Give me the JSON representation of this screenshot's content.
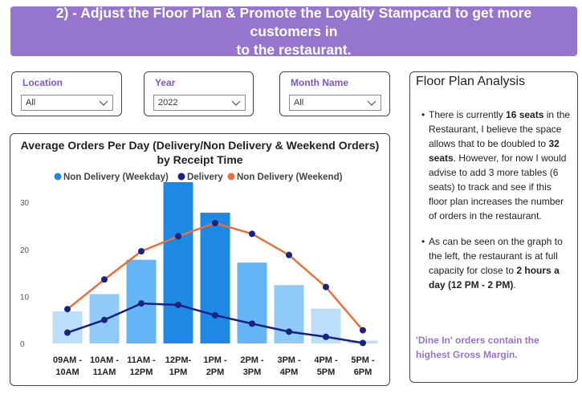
{
  "banner": {
    "line1": "2) - Adjust the Floor Plan & Promote the Loyalty Stampcard to get more customers in",
    "line2": "to the restaurant."
  },
  "filters": {
    "location": {
      "label": "Location",
      "value": "All",
      "icon": "chevron-down-icon"
    },
    "year": {
      "label": "Year",
      "value": "2022",
      "icon": "chevron-down-icon"
    },
    "month": {
      "label": "Month Name",
      "value": "All",
      "icon": "chevron-down-icon"
    }
  },
  "analysis": {
    "title": "Floor Plan Analysis",
    "bullet1": {
      "p1": "There is currently ",
      "b1": "16 seats",
      "p2": " in the Restaurant, I believe the space allows that to be doubled to ",
      "b2": "32 seats",
      "p3": ". However, for now I would advise to add 3 more tables (6 seats) to track and see if this floor plan increases the number of orders in the restaurant."
    },
    "bullet2": {
      "p1": "As can be seen on the graph to the left, the restaurant is at full capacity for close to ",
      "b1": "2 hours a day (12 PM - 2 PM)",
      "p2": "."
    },
    "highlight": "'Dine In' orders contain the highest Gross Margin."
  },
  "colors": {
    "banner": "#9575cd",
    "label_purple": "#7e57c2",
    "delivery": "#1a237e",
    "weekend": "#e8703a",
    "bar_peak": "#1e88e5",
    "bar_high": "#64b5f6",
    "bar_mid": "#90caf9",
    "bar_low": "#bbdefb"
  },
  "chart_data": {
    "type": "bar",
    "title_line1": "Average Orders Per Day (Delivery/Non Delivery & Weekend Orders)",
    "title_line2": "by Receipt Time",
    "categories": [
      [
        "09AM -",
        "10AM"
      ],
      [
        "10AM -",
        "11AM"
      ],
      [
        "11AM -",
        "12PM"
      ],
      [
        "12PM-",
        "1PM"
      ],
      [
        "1PM -",
        "2PM"
      ],
      [
        "2PM -",
        "3PM"
      ],
      [
        "3PM -",
        "4PM"
      ],
      [
        "4PM -",
        "5PM"
      ],
      [
        "5PM -",
        "6PM"
      ]
    ],
    "ylim": [
      0,
      36
    ],
    "yticks": [
      0,
      10,
      20,
      30
    ],
    "grid": false,
    "legend_position": "top",
    "series": [
      {
        "name": "Non Delivery (Weekday)",
        "type": "bar",
        "values": [
          6.8,
          10.5,
          17.8,
          34.3,
          27.8,
          17.2,
          12.4,
          7.4,
          0.6
        ]
      },
      {
        "name": "Delivery",
        "type": "line",
        "values": [
          2.3,
          5.0,
          8.5,
          8.2,
          6.0,
          4.2,
          2.5,
          1.4,
          0.1
        ]
      },
      {
        "name": "Non Delivery (Weekend)",
        "type": "line",
        "values": [
          7.3,
          13.6,
          19.6,
          22.8,
          25.6,
          23.3,
          18.8,
          12.0,
          2.8
        ]
      }
    ]
  }
}
